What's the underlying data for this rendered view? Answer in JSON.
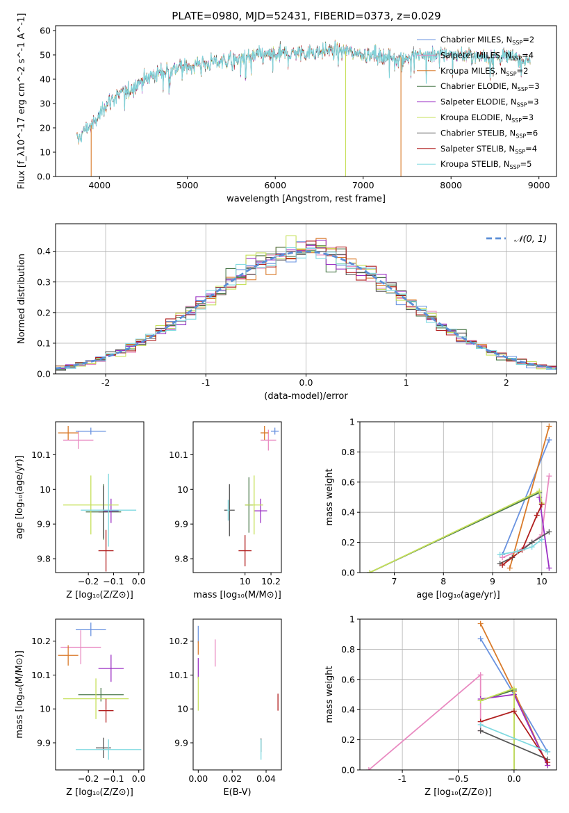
{
  "figure": {
    "title": "PLATE=0980, MJD=52431, FIBERID=0373, z=0.029"
  },
  "models": [
    {
      "name": "Chabrier MILES, N$_{SSP}$=2",
      "base": "Chabrier MILES, N",
      "nssp": "2",
      "color": "#6a93e0"
    },
    {
      "name": "Salpeter MILES, N$_{SSP}$=4",
      "base": "Salpeter MILES, N",
      "nssp": "4",
      "color": "#e98ac1"
    },
    {
      "name": "Kroupa MILES, N$_{SSP}$=2",
      "base": "Kroupa MILES, N",
      "nssp": "2",
      "color": "#d97a2a"
    },
    {
      "name": "Chabrier ELODIE, N$_{SSP}$=3",
      "base": "Chabrier ELODIE, N",
      "nssp": "3",
      "color": "#4c7a4c"
    },
    {
      "name": "Salpeter ELODIE, N$_{SSP}$=3",
      "base": "Salpeter ELODIE, N",
      "nssp": "3",
      "color": "#9b30c4"
    },
    {
      "name": "Kroupa ELODIE, N$_{SSP}$=3",
      "base": "Kroupa ELODIE, N",
      "nssp": "3",
      "color": "#c6e05a"
    },
    {
      "name": "Chabrier STELIB, N$_{SSP}$=6",
      "base": "Chabrier STELIB, N",
      "nssp": "6",
      "color": "#555555"
    },
    {
      "name": "Salpeter STELIB, N$_{SSP}$=4",
      "base": "Salpeter STELIB, N",
      "nssp": "4",
      "color": "#b01e1e"
    },
    {
      "name": "Kroupa STELIB, N$_{SSP}$=5",
      "base": "Kroupa STELIB, N",
      "nssp": "5",
      "color": "#7fd9e0"
    }
  ],
  "chart_data": [
    {
      "id": "spectrum",
      "type": "line",
      "xlabel": "wavelength [Angstrom, rest frame]",
      "ylabel": "Flux [f_λ10^-17 erg cm^-2 s^-1 A^-1]",
      "xlim": [
        3500,
        9200
      ],
      "ylim": [
        0,
        62
      ],
      "xticks": [
        4000,
        5000,
        6000,
        7000,
        8000,
        9000
      ],
      "yticks": [
        0,
        10,
        20,
        30,
        40,
        50,
        60
      ],
      "continuum": {
        "x": [
          3750,
          3850,
          3950,
          4050,
          4150,
          4250,
          4350,
          4500,
          4700,
          4900,
          5100,
          5300,
          5500,
          5700,
          5900,
          6100,
          6300,
          6500,
          6700,
          6900,
          7100,
          7300,
          7500,
          7700,
          7900,
          8100,
          8300,
          8500,
          8700,
          8900
        ],
        "y": [
          15,
          20,
          22,
          29,
          32,
          34,
          36,
          40,
          43,
          45,
          46,
          47,
          48,
          49,
          50,
          50.5,
          51,
          51.5,
          52,
          51,
          50,
          49,
          49,
          50,
          50.5,
          50,
          49.5,
          49.5,
          49,
          48
        ]
      },
      "drops": [
        {
          "series": "Kroupa MILES, N$_{SSP}$=2",
          "x": 3905
        },
        {
          "series": "Kroupa ELODIE, N$_{SSP}$=3",
          "x": 6800
        },
        {
          "series": "Kroupa MILES, N$_{SSP}$=2",
          "x": 7430
        }
      ],
      "legend": "upper right"
    },
    {
      "id": "residuals",
      "type": "histogram",
      "xlabel": "(data-model)/error",
      "ylabel": "Normed distribution",
      "xlim": [
        -2.5,
        2.5
      ],
      "ylim": [
        0,
        0.49
      ],
      "xticks": [
        -2,
        -1,
        0,
        1,
        2
      ],
      "yticks": [
        0.0,
        0.1,
        0.2,
        0.3,
        0.4
      ],
      "bin_width": 0.1,
      "reference": {
        "label": "$\\mathcal{N}(0,1)$",
        "label_text": "𝒩(0, 1)",
        "color": "#5b8ed6"
      },
      "grid": true
    },
    {
      "id": "age_vs_Z",
      "type": "scatter",
      "xlabel": "Z [log₁₀(Z/Z⊙)]",
      "ylabel": "age  [log₁₀(age/yr)]",
      "xlim": [
        -0.33,
        0.02
      ],
      "ylim": [
        9.76,
        10.195
      ],
      "xticks": [
        -0.2,
        -0.1,
        0.0
      ],
      "yticks": [
        9.8,
        9.9,
        10.0,
        10.1
      ],
      "points": [
        {
          "x": -0.19,
          "y": 10.168,
          "xerr": 0.06,
          "yerr": 0.01,
          "color": "#6a93e0"
        },
        {
          "x": -0.24,
          "y": 10.142,
          "xerr": 0.06,
          "yerr": 0.025,
          "color": "#e98ac1"
        },
        {
          "x": -0.28,
          "y": 10.163,
          "xerr": 0.04,
          "yerr": 0.02,
          "color": "#d97a2a"
        },
        {
          "x": -0.14,
          "y": 9.935,
          "xerr": 0.07,
          "yerr": 0.08,
          "color": "#4c7a4c"
        },
        {
          "x": -0.11,
          "y": 9.938,
          "xerr": 0.03,
          "yerr": 0.035,
          "color": "#9b30c4"
        },
        {
          "x": -0.19,
          "y": 9.955,
          "xerr": 0.11,
          "yerr": 0.085,
          "color": "#c6e05a"
        },
        {
          "x": -0.14,
          "y": 9.935,
          "xerr": 0.02,
          "yerr": 0.075,
          "color": "#555555"
        },
        {
          "x": -0.13,
          "y": 9.823,
          "xerr": 0.03,
          "yerr": 0.06,
          "color": "#b01e1e"
        },
        {
          "x": -0.12,
          "y": 9.94,
          "xerr": 0.11,
          "yerr": 0.105,
          "color": "#7fd9e0"
        }
      ]
    },
    {
      "id": "age_vs_mass",
      "type": "scatter",
      "xlabel": "mass [log₁₀(M/M⊙)]",
      "ylabel": "",
      "xlim": [
        9.6,
        10.28
      ],
      "ylim": [
        9.76,
        10.195
      ],
      "xticks": [
        10.0,
        10.2
      ],
      "yticks": [
        9.8,
        9.9,
        10.0,
        10.1
      ],
      "points": [
        {
          "x": 10.23,
          "y": 10.168,
          "xerr": 0.03,
          "yerr": 0.01,
          "color": "#6a93e0"
        },
        {
          "x": 10.18,
          "y": 10.142,
          "xerr": 0.06,
          "yerr": 0.03,
          "color": "#e98ac1"
        },
        {
          "x": 10.15,
          "y": 10.163,
          "xerr": 0.03,
          "yerr": 0.02,
          "color": "#d97a2a"
        },
        {
          "x": 10.03,
          "y": 9.955,
          "xerr": 0.03,
          "yerr": 0.08,
          "color": "#4c7a4c"
        },
        {
          "x": 10.12,
          "y": 9.938,
          "xerr": 0.05,
          "yerr": 0.035,
          "color": "#9b30c4"
        },
        {
          "x": 10.07,
          "y": 9.955,
          "xerr": 0.07,
          "yerr": 0.085,
          "color": "#c6e05a"
        },
        {
          "x": 9.88,
          "y": 9.94,
          "xerr": 0.04,
          "yerr": 0.075,
          "color": "#555555"
        },
        {
          "x": 10.0,
          "y": 9.823,
          "xerr": 0.05,
          "yerr": 0.045,
          "color": "#b01e1e"
        },
        {
          "x": 9.87,
          "y": 9.94,
          "xerr": 0.01,
          "yerr": 0.03,
          "color": "#7fd9e0"
        }
      ]
    },
    {
      "id": "weight_vs_age",
      "type": "line",
      "xlabel": "age  [log₁₀(age/yr)]",
      "ylabel": "mass weight",
      "xlim": [
        6.3,
        10.3
      ],
      "ylim": [
        0,
        1
      ],
      "xticks": [
        7,
        8,
        9,
        10
      ],
      "yticks": [
        0.0,
        0.2,
        0.4,
        0.6,
        0.8,
        1.0
      ],
      "grid": true,
      "series": [
        {
          "color": "#6a93e0",
          "x": [
            9.2,
            10.15
          ],
          "y": [
            0.12,
            0.88
          ]
        },
        {
          "color": "#e98ac1",
          "x": [
            9.2,
            9.5,
            9.8,
            10.0,
            10.15
          ],
          "y": [
            0.1,
            0.14,
            0.2,
            0.25,
            0.64
          ]
        },
        {
          "color": "#d97a2a",
          "x": [
            9.35,
            10.15
          ],
          "y": [
            0.03,
            0.97
          ]
        },
        {
          "color": "#4c7a4c",
          "x": [
            6.5,
            9.95
          ],
          "y": [
            0.0,
            0.53
          ]
        },
        {
          "color": "#9b30c4",
          "x": [
            9.95,
            10.15
          ],
          "y": [
            0.5,
            0.03
          ]
        },
        {
          "color": "#c6e05a",
          "x": [
            6.5,
            9.95,
            10.0
          ],
          "y": [
            0.0,
            0.54,
            0.46
          ]
        },
        {
          "color": "#555555",
          "x": [
            9.15,
            9.4,
            9.8,
            10.15
          ],
          "y": [
            0.06,
            0.1,
            0.2,
            0.27
          ]
        },
        {
          "color": "#b01e1e",
          "x": [
            9.2,
            9.6,
            9.9,
            10.0
          ],
          "y": [
            0.05,
            0.15,
            0.38,
            0.45
          ]
        },
        {
          "color": "#7fd9e0",
          "x": [
            9.15,
            9.5,
            9.8,
            10.0
          ],
          "y": [
            0.12,
            0.14,
            0.17,
            0.22
          ]
        }
      ]
    },
    {
      "id": "mass_vs_Z",
      "type": "scatter",
      "xlabel": "Z [log₁₀(Z/Z⊙)]",
      "ylabel": "mass [log₁₀(M/M⊙)]",
      "xlim": [
        -0.33,
        0.02
      ],
      "ylim": [
        9.82,
        10.265
      ],
      "xticks": [
        -0.2,
        -0.1,
        0.0
      ],
      "yticks": [
        9.9,
        10.0,
        10.1,
        10.2
      ],
      "points": [
        {
          "x": -0.19,
          "y": 10.235,
          "xerr": 0.06,
          "yerr": 0.02,
          "color": "#6a93e0"
        },
        {
          "x": -0.23,
          "y": 10.182,
          "xerr": 0.08,
          "yerr": 0.05,
          "color": "#e98ac1"
        },
        {
          "x": -0.28,
          "y": 10.158,
          "xerr": 0.04,
          "yerr": 0.03,
          "color": "#d97a2a"
        },
        {
          "x": -0.15,
          "y": 10.042,
          "xerr": 0.09,
          "yerr": 0.02,
          "color": "#4c7a4c"
        },
        {
          "x": -0.11,
          "y": 10.12,
          "xerr": 0.05,
          "yerr": 0.04,
          "color": "#9b30c4"
        },
        {
          "x": -0.17,
          "y": 10.03,
          "xerr": 0.13,
          "yerr": 0.06,
          "color": "#c6e05a"
        },
        {
          "x": -0.14,
          "y": 9.885,
          "xerr": 0.03,
          "yerr": 0.03,
          "color": "#555555"
        },
        {
          "x": -0.13,
          "y": 9.995,
          "xerr": 0.03,
          "yerr": 0.035,
          "color": "#b01e1e"
        },
        {
          "x": -0.12,
          "y": 9.88,
          "xerr": 0.13,
          "yerr": 0.03,
          "color": "#7fd9e0"
        }
      ]
    },
    {
      "id": "mass_vs_ebv",
      "type": "scatter",
      "xlabel": "E(B-V)",
      "ylabel": "",
      "xlim": [
        -0.003,
        0.049
      ],
      "ylim": [
        9.82,
        10.265
      ],
      "xticks": [
        0.0,
        0.02,
        0.04
      ],
      "yticks": [
        9.9,
        10.0,
        10.1,
        10.2
      ],
      "points": [
        {
          "x": 0.0,
          "y": 10.22,
          "xerr": 0,
          "yerr": 0.025,
          "color": "#6a93e0"
        },
        {
          "x": 0.01,
          "y": 10.165,
          "xerr": 0,
          "yerr": 0.04,
          "color": "#e98ac1"
        },
        {
          "x": 0.0,
          "y": 10.18,
          "xerr": 0,
          "yerr": 0.02,
          "color": "#d97a2a"
        },
        {
          "x": 0.0,
          "y": 10.12,
          "xerr": 0,
          "yerr": 0.03,
          "color": "#9b30c4"
        },
        {
          "x": 0.0,
          "y": 10.045,
          "xerr": 0,
          "yerr": 0.05,
          "color": "#c6e05a"
        },
        {
          "x": 0.037,
          "y": 9.893,
          "xerr": 0,
          "yerr": 0.02,
          "color": "#555555"
        },
        {
          "x": 0.047,
          "y": 10.02,
          "xerr": 0,
          "yerr": 0.025,
          "color": "#b01e1e"
        },
        {
          "x": 0.037,
          "y": 9.88,
          "xerr": 0,
          "yerr": 0.03,
          "color": "#7fd9e0"
        }
      ]
    },
    {
      "id": "weight_vs_Z",
      "type": "line",
      "xlabel": "Z [log₁₀(Z/Z⊙)]",
      "ylabel": "mass weight",
      "xlim": [
        -1.38,
        0.38
      ],
      "ylim": [
        0,
        1
      ],
      "xticks": [
        -1.0,
        -0.5,
        0.0
      ],
      "yticks": [
        0.0,
        0.2,
        0.4,
        0.6,
        0.8,
        1.0
      ],
      "grid": true,
      "series": [
        {
          "color": "#6a93e0",
          "x": [
            -0.3,
            0.0,
            0.3
          ],
          "y": [
            0.87,
            0.5,
            0.12
          ]
        },
        {
          "color": "#e98ac1",
          "x": [
            -1.3,
            -0.3,
            -0.3
          ],
          "y": [
            0.0,
            0.63,
            0.26
          ]
        },
        {
          "color": "#d97a2a",
          "x": [
            -0.3,
            0.0,
            0.3
          ],
          "y": [
            0.97,
            0.52,
            0.03
          ]
        },
        {
          "color": "#4c7a4c",
          "x": [
            -0.3,
            0.0,
            0.0
          ],
          "y": [
            0.46,
            0.53,
            0.0
          ]
        },
        {
          "color": "#9b30c4",
          "x": [
            -0.3,
            0.0,
            0.3
          ],
          "y": [
            0.47,
            0.5,
            0.03
          ]
        },
        {
          "color": "#c6e05a",
          "x": [
            -0.3,
            0.0,
            0.0
          ],
          "y": [
            0.46,
            0.54,
            0.0
          ]
        },
        {
          "color": "#555555",
          "x": [
            -0.3,
            0.3
          ],
          "y": [
            0.26,
            0.07
          ]
        },
        {
          "color": "#b01e1e",
          "x": [
            -0.3,
            0.0,
            0.3
          ],
          "y": [
            0.32,
            0.39,
            0.05
          ]
        },
        {
          "color": "#7fd9e0",
          "x": [
            -0.3,
            0.3
          ],
          "y": [
            0.3,
            0.12
          ]
        }
      ]
    }
  ]
}
